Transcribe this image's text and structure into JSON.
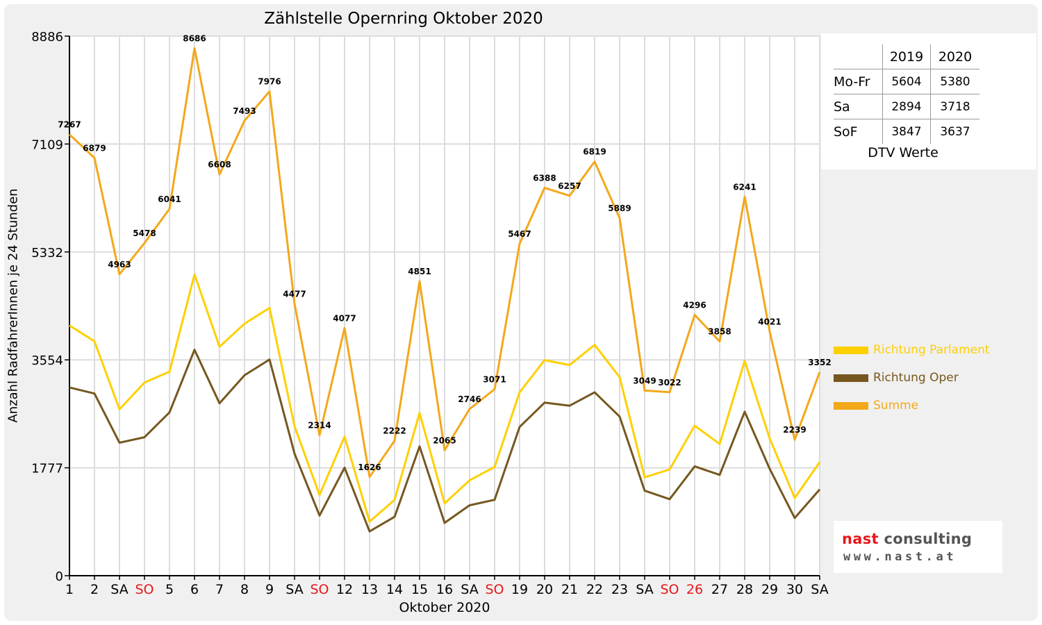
{
  "chart_data": {
    "type": "line",
    "title": "Zählstelle Opernring Oktober 2020",
    "xlabel": "Oktober 2020",
    "ylabel": "Anzahl RadfahrerInnen je 24 Stunden",
    "ylim": [
      0,
      8886
    ],
    "yticks": [
      "0",
      "1777",
      "3554",
      "5332",
      "7109",
      "8886"
    ],
    "grid": true,
    "categories": [
      "1",
      "2",
      "SA",
      "SO",
      "5",
      "6",
      "7",
      "8",
      "9",
      "SA",
      "SO",
      "12",
      "13",
      "14",
      "15",
      "16",
      "SA",
      "SO",
      "19",
      "20",
      "21",
      "22",
      "23",
      "SA",
      "SO",
      "26",
      "27",
      "28",
      "29",
      "30",
      "SA"
    ],
    "highlighted_categories": [
      3,
      10,
      17,
      24,
      25
    ],
    "series": [
      {
        "name": "Richtung Parlament",
        "color": "#ffd000",
        "values": [
          4120,
          3860,
          2740,
          3180,
          3360,
          4960,
          3770,
          4150,
          4410,
          2460,
          1330,
          2290,
          890,
          1250,
          2680,
          1190,
          1570,
          1790,
          3020,
          3550,
          3470,
          3800,
          3270,
          1620,
          1750,
          2470,
          2170,
          3540,
          2260,
          1280,
          1870
        ]
      },
      {
        "name": "Richtung Oper",
        "color": "#76571f",
        "values": [
          3100,
          3000,
          2190,
          2280,
          2690,
          3720,
          2840,
          3300,
          3560,
          2010,
          990,
          1780,
          730,
          970,
          2130,
          870,
          1160,
          1250,
          2450,
          2850,
          2800,
          3020,
          2620,
          1400,
          1260,
          1800,
          1660,
          2700,
          1760,
          950,
          1420
        ]
      },
      {
        "name": "Summe",
        "color": "#f3a81a",
        "values": [
          7267,
          6879,
          4963,
          5478,
          6041,
          8686,
          6608,
          7493,
          7976,
          4477,
          2314,
          4077,
          1626,
          2222,
          4851,
          2065,
          2746,
          3071,
          5467,
          6388,
          6257,
          6819,
          5889,
          3049,
          3022,
          4296,
          3858,
          6241,
          4021,
          2239,
          3352
        ]
      }
    ],
    "data_labels_series": "Summe",
    "legend_position": "right"
  },
  "colors": {
    "weekend_label": "#e8171c",
    "grid": "#dcdcdc",
    "background": "#f0f0f0"
  },
  "dtv": {
    "headers": [
      "2019",
      "2020"
    ],
    "rows": [
      {
        "label": "Mo-Fr",
        "v2019": "5604",
        "v2020": "5380"
      },
      {
        "label": "Sa",
        "v2019": "2894",
        "v2020": "3718"
      },
      {
        "label": "SoF",
        "v2019": "3847",
        "v2020": "3637"
      }
    ],
    "caption": "DTV Werte"
  },
  "logo": {
    "line1_red": "nast",
    "line1_gray": " consulting",
    "line2": "www.nast.at"
  }
}
